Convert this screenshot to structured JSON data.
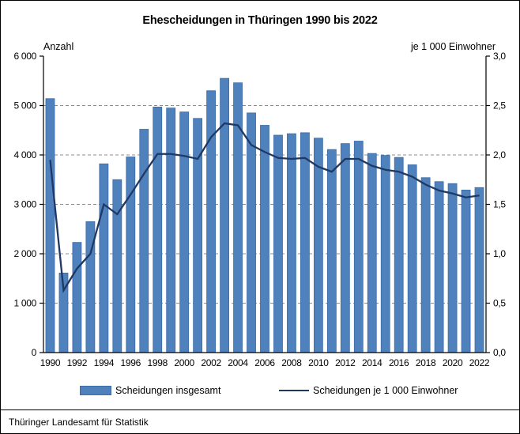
{
  "title": "Ehescheidungen in Thüringen 1990 bis 2022",
  "axes": {
    "left_header": "Anzahl",
    "right_header": "je 1 000 Einwohner",
    "left_tick_labels": [
      "0",
      "1 000",
      "2 000",
      "3 000",
      "4 000",
      "5 000",
      "6 000"
    ],
    "right_tick_labels": [
      "0,0",
      "0,5",
      "1,0",
      "1,5",
      "2,0",
      "2,5",
      "3,0"
    ],
    "x_tick_labels": [
      "1990",
      "1992",
      "1994",
      "1996",
      "1998",
      "2000",
      "2002",
      "2004",
      "2006",
      "2008",
      "2010",
      "2012",
      "2014",
      "2016",
      "2018",
      "2020",
      "2022"
    ]
  },
  "legend": {
    "bar_label": "Scheidungen insgesamt",
    "line_label": "Scheidungen je 1 000 Einwohner"
  },
  "footer": {
    "source": "Thüringer Landesamt für Statistik"
  },
  "colors": {
    "bar_fill": "#4f81bd",
    "bar_border": "#3c6ca8",
    "line": "#1f3864",
    "grid": "#8c8c8c",
    "axis": "#000000"
  },
  "chart_data": {
    "type": "bar",
    "title": "Ehescheidungen in Thüringen 1990 bis 2022",
    "x": [
      1990,
      1991,
      1992,
      1993,
      1994,
      1995,
      1996,
      1997,
      1998,
      1999,
      2000,
      2001,
      2002,
      2003,
      2004,
      2005,
      2006,
      2007,
      2008,
      2009,
      2010,
      2011,
      2012,
      2013,
      2014,
      2015,
      2016,
      2017,
      2018,
      2019,
      2020,
      2021,
      2022
    ],
    "series": [
      {
        "name": "Scheidungen insgesamt",
        "type": "bar",
        "axis": "left",
        "values": [
          5140,
          1610,
          2230,
          2650,
          3820,
          3500,
          3960,
          4520,
          4970,
          4950,
          4870,
          4740,
          5300,
          5550,
          5460,
          4850,
          4600,
          4400,
          4430,
          4450,
          4340,
          4110,
          4230,
          4280,
          4030,
          3990,
          3950,
          3800,
          3540,
          3460,
          3420,
          3290,
          3340
        ]
      },
      {
        "name": "Scheidungen je 1 000 Einwohner",
        "type": "line",
        "axis": "right",
        "values": [
          1.95,
          0.63,
          0.85,
          1.0,
          1.5,
          1.4,
          1.6,
          1.81,
          2.01,
          2.01,
          1.99,
          1.96,
          2.18,
          2.32,
          2.3,
          2.1,
          2.03,
          1.97,
          1.96,
          1.97,
          1.88,
          1.83,
          1.96,
          1.96,
          1.89,
          1.85,
          1.83,
          1.78,
          1.7,
          1.64,
          1.61,
          1.57,
          1.59
        ]
      }
    ],
    "left_axis": {
      "label": "Anzahl",
      "range": [
        0,
        6000
      ],
      "tick_step": 1000
    },
    "right_axis": {
      "label": "je 1 000 Einwohner",
      "range": [
        0,
        3.0
      ],
      "tick_step": 0.5
    },
    "grid": "horizontal-dashed",
    "legend_position": "bottom"
  }
}
